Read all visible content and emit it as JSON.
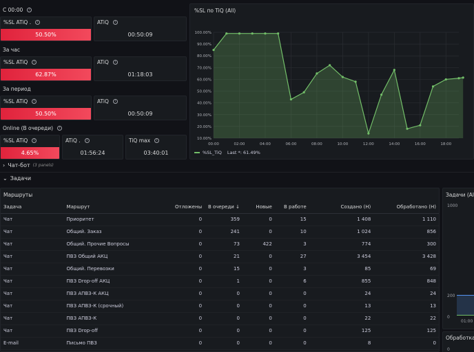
{
  "sections": {
    "since_midnight": "С 00:00",
    "hour": "За час",
    "period": "За период",
    "online": "Online (В очереди)"
  },
  "stats": {
    "s1": {
      "title": "%SL ATiQ .",
      "value": "50.50%"
    },
    "a1": {
      "title": "ATiQ",
      "value": "00:50:09"
    },
    "s2": {
      "title": "%SL ATiQ",
      "value": "62.87%"
    },
    "a2": {
      "title": "ATiQ",
      "value": "01:18:03"
    },
    "s3": {
      "title": "%SL ATiQ",
      "value": "50.50%"
    },
    "a3": {
      "title": "ATiQ",
      "value": "00:50:09"
    },
    "s4": {
      "title": "%SL ATiQ",
      "value": "4.65%"
    },
    "a4": {
      "title": "ATiQ .",
      "value": "01:56:24"
    },
    "t4": {
      "title": "TiQ max",
      "value": "03:40:01"
    }
  },
  "chart_panel": {
    "title": "%SL по TiQ (All)",
    "legend_series": "%SL_TiQ",
    "legend_last": "Last *: 61.49%"
  },
  "rows": {
    "chatbot": "Чат-бот",
    "chatbot_sub": "(3 panels)",
    "tasks": "Задачи"
  },
  "routes_panel": {
    "title": "Маршруты"
  },
  "right_panels": {
    "tasks_all": "Задачи (All)",
    "processing": "Обработка ч",
    "y_top": "1000",
    "y_mid": "200",
    "y_zero": "0",
    "x_tick": "01:00"
  },
  "table": {
    "headers": [
      "Задача",
      "Маршрут",
      "Отложены",
      "В очереди",
      "Новые",
      "В работе",
      "Создано (Н)",
      "Обработано (Н)"
    ],
    "sort_icon": "↓",
    "rows": [
      [
        "Чат",
        "Приоритет",
        "0",
        "359",
        "0",
        "15",
        "1 408",
        "1 110"
      ],
      [
        "Чат",
        "Общий. Заказ",
        "0",
        "241",
        "0",
        "10",
        "1 024",
        "856"
      ],
      [
        "Чат",
        "Общий. Прочие Вопросы",
        "0",
        "73",
        "422",
        "3",
        "774",
        "300"
      ],
      [
        "Чат",
        "ПВЗ Общий АКЦ",
        "0",
        "21",
        "0",
        "27",
        "3 454",
        "3 428"
      ],
      [
        "Чат",
        "Общий. Перевозки",
        "0",
        "15",
        "0",
        "3",
        "85",
        "69"
      ],
      [
        "Чат",
        "ПВЗ Drop-off АКЦ",
        "0",
        "1",
        "0",
        "6",
        "855",
        "848"
      ],
      [
        "Чат",
        "ПВЗ АПВЗ-К АКЦ",
        "0",
        "0",
        "0",
        "0",
        "24",
        "24"
      ],
      [
        "Чат",
        "ПВЗ АПВЗ-К (срочный)",
        "0",
        "0",
        "0",
        "0",
        "13",
        "13"
      ],
      [
        "Чат",
        "ПВЗ АПВЗ-К",
        "0",
        "0",
        "0",
        "0",
        "22",
        "22"
      ],
      [
        "Чат",
        "ПВЗ Drop-off",
        "0",
        "0",
        "0",
        "0",
        "125",
        "125"
      ],
      [
        "E-mail",
        "Письмо ПВЗ",
        "0",
        "0",
        "0",
        "0",
        "8",
        "0"
      ]
    ]
  },
  "colors": {
    "line": "#73bf69",
    "fill": "#73bf69",
    "red": "#f2495c",
    "bg": "#111217",
    "panel": "#181b1f"
  },
  "chart_data": {
    "type": "area",
    "title": "%SL по TiQ (All)",
    "x": [
      "00:00",
      "01:00",
      "02:00",
      "03:00",
      "04:00",
      "05:00",
      "06:00",
      "07:00",
      "08:00",
      "09:00",
      "10:00",
      "11:00",
      "12:00",
      "13:00",
      "14:00",
      "15:00",
      "16:00",
      "17:00",
      "18:00",
      "19:00",
      "19:20"
    ],
    "series": [
      {
        "name": "%SL_TiQ",
        "values": [
          85,
          99,
          99,
          99,
          99,
          99,
          43,
          49,
          65,
          72,
          62,
          58,
          14,
          47,
          68,
          18,
          21,
          54,
          60,
          61,
          61.49
        ]
      }
    ],
    "xticks": [
      "00:00",
      "02:00",
      "04:00",
      "06:00",
      "08:00",
      "10:00",
      "12:00",
      "14:00",
      "16:00",
      "18:00"
    ],
    "yticks": [
      "10.00%",
      "20.00%",
      "30.00%",
      "40.00%",
      "50.00%",
      "60.00%",
      "70.00%",
      "80.00%",
      "90.00%",
      "100.00%"
    ],
    "ylim": [
      10,
      100
    ],
    "grid": true,
    "legend": "bottom-left"
  }
}
